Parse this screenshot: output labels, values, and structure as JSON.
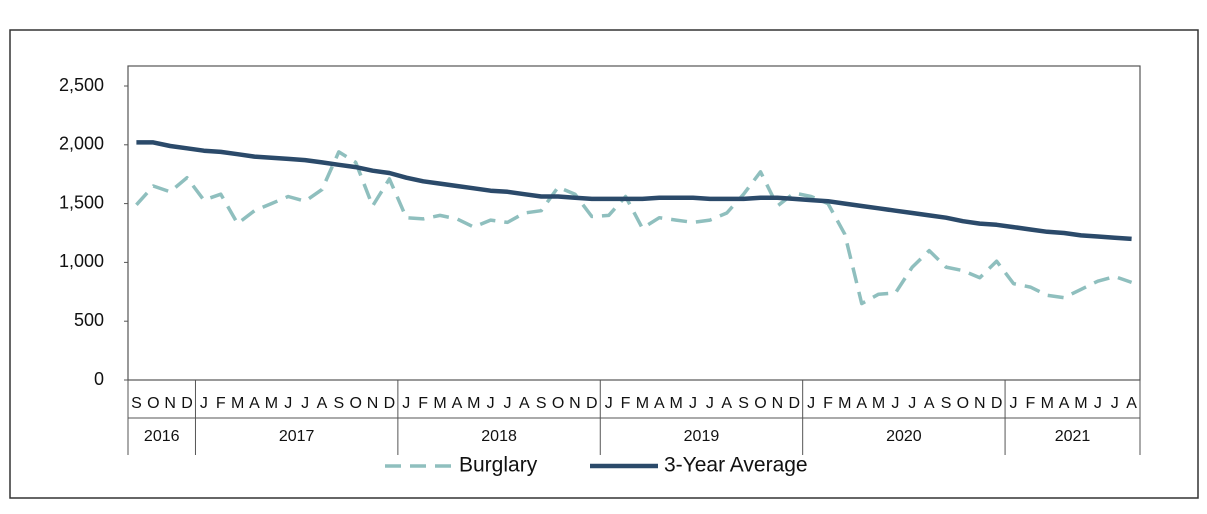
{
  "chart_data": {
    "type": "line",
    "category_groups": [
      {
        "label": "2016",
        "categories": [
          "S",
          "O",
          "N",
          "D"
        ]
      },
      {
        "label": "2017",
        "categories": [
          "J",
          "F",
          "M",
          "A",
          "M",
          "J",
          "J",
          "A",
          "S",
          "O",
          "N",
          "D"
        ]
      },
      {
        "label": "2018",
        "categories": [
          "J",
          "F",
          "M",
          "A",
          "M",
          "J",
          "J",
          "A",
          "S",
          "O",
          "N",
          "D"
        ]
      },
      {
        "label": "2019",
        "categories": [
          "J",
          "F",
          "M",
          "A",
          "M",
          "J",
          "J",
          "A",
          "S",
          "O",
          "N",
          "D"
        ]
      },
      {
        "label": "2020",
        "categories": [
          "J",
          "F",
          "M",
          "A",
          "M",
          "J",
          "J",
          "A",
          "S",
          "O",
          "N",
          "D"
        ]
      },
      {
        "label": "2021",
        "categories": [
          "J",
          "F",
          "M",
          "A",
          "M",
          "J",
          "J",
          "A"
        ]
      }
    ],
    "series": [
      {
        "name": "Burglary",
        "color": "#8fbfbe",
        "dashed": true,
        "values": [
          1490,
          1650,
          1600,
          1720,
          1530,
          1580,
          1330,
          1440,
          1500,
          1560,
          1520,
          1620,
          1940,
          1850,
          1480,
          1710,
          1380,
          1370,
          1400,
          1370,
          1300,
          1360,
          1340,
          1420,
          1440,
          1640,
          1580,
          1390,
          1400,
          1560,
          1290,
          1380,
          1360,
          1340,
          1360,
          1420,
          1580,
          1770,
          1480,
          1590,
          1560,
          1500,
          1240,
          650,
          730,
          740,
          960,
          1100,
          960,
          930,
          870,
          1010,
          820,
          790,
          720,
          700,
          770,
          840,
          880,
          830
        ]
      },
      {
        "name": "3-Year Average",
        "color": "#2b4a6a",
        "dashed": false,
        "values": [
          2020,
          2020,
          1990,
          1970,
          1950,
          1940,
          1920,
          1900,
          1890,
          1880,
          1870,
          1850,
          1830,
          1810,
          1780,
          1760,
          1720,
          1690,
          1670,
          1650,
          1630,
          1610,
          1600,
          1580,
          1560,
          1560,
          1550,
          1540,
          1540,
          1540,
          1540,
          1550,
          1550,
          1550,
          1540,
          1540,
          1540,
          1550,
          1550,
          1540,
          1530,
          1520,
          1500,
          1480,
          1460,
          1440,
          1420,
          1400,
          1380,
          1350,
          1330,
          1320,
          1300,
          1280,
          1260,
          1250,
          1230,
          1220,
          1210,
          1200
        ]
      }
    ],
    "ylim": [
      0,
      2500
    ],
    "yticks": [
      0,
      500,
      {
        "value": 1000,
        "label": "1,000"
      },
      {
        "value": 1500,
        "label": "1,500"
      },
      {
        "value": 2000,
        "label": "2,000"
      },
      {
        "value": 2500,
        "label": "2,500"
      }
    ]
  }
}
